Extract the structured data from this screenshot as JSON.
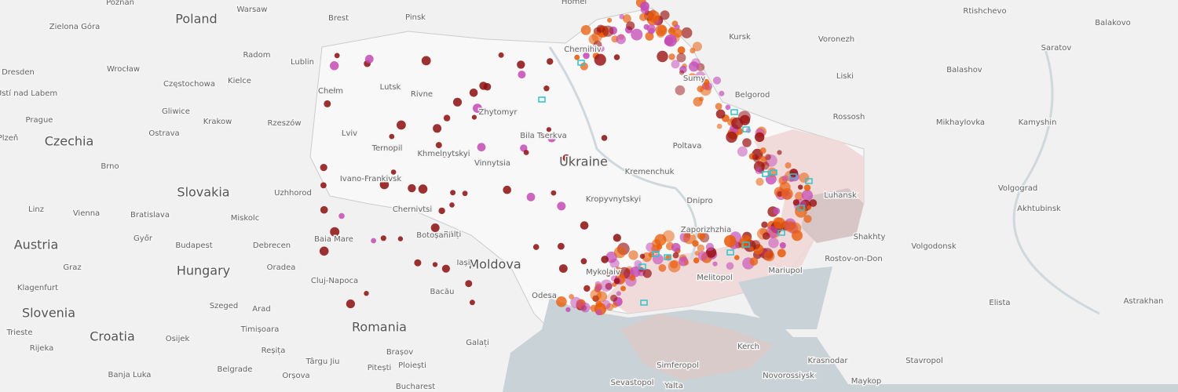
{
  "map": {
    "countries": [
      "Poland",
      "Czechia",
      "Slovakia",
      "Austria",
      "Hungary",
      "Slovenia",
      "Croatia",
      "Romania",
      "Moldova",
      "Ukraine"
    ],
    "cities": [
      "Poznań",
      "Warsaw",
      "Brest",
      "Pinsk",
      "Homel",
      "Rtishchevo",
      "Balakovo",
      "Zielona Góra",
      "Kursk",
      "Voronezh",
      "Saratov",
      "Chernihiv",
      "Radom",
      "Lublin",
      "Dresden",
      "Wrocław",
      "Balashov",
      "Liski",
      "Chełm",
      "Częstochowa",
      "Kielce",
      "Sumy",
      "Belgorod",
      "Ústí nad Labem",
      "Lutsk",
      "Rivne",
      "Gliwice",
      "Prague",
      "Krakow",
      "Rzeszów",
      "Zhytomyr",
      "Rossosh",
      "Mikhaylovka",
      "Kamyshin",
      "Plzeň",
      "Ostrava",
      "Lviv",
      "Bila Tserkva",
      "Ternopil",
      "Poltava",
      "Khmelnytskyi",
      "Brno",
      "Vinnytsia",
      "Kremenchuk",
      "Uzhhorod",
      "Ivano-Frankivsk",
      "Luhansk",
      "Volgograd",
      "Kropyvnytskyi",
      "Dnipro",
      "Linz",
      "Vienna",
      "Bratislava",
      "Miskolc",
      "Chernivtsi",
      "Akhtubinsk",
      "Zaporizhzhia",
      "Bălți",
      "Botoșani",
      "Baia Mare",
      "Shakhty",
      "Győr",
      "Budapest",
      "Debrecen",
      "Volgodonsk",
      "Graz",
      "Oradea",
      "Iași",
      "Cluj-Napoca",
      "Rostov-on-Don",
      "Mykolaiv",
      "Melitopol",
      "Mariupol",
      "Klagenfurt",
      "Bacău",
      "Odesa",
      "Elista",
      "Astrakhan",
      "Szeged",
      "Arad",
      "Trieste",
      "Timișoara",
      "Osijek",
      "Rijeka",
      "Brașov",
      "Galați",
      "Kerch",
      "Simferopol",
      "Krasnodar",
      "Stavropol",
      "Belgrade",
      "Reșița",
      "Târgu Jiu",
      "Pitești",
      "Ploiești",
      "Banja Luka",
      "Orșova",
      "Novorossiysk",
      "Sevastopol",
      "Yalta",
      "Maykop",
      "Bucharest"
    ]
  }
}
